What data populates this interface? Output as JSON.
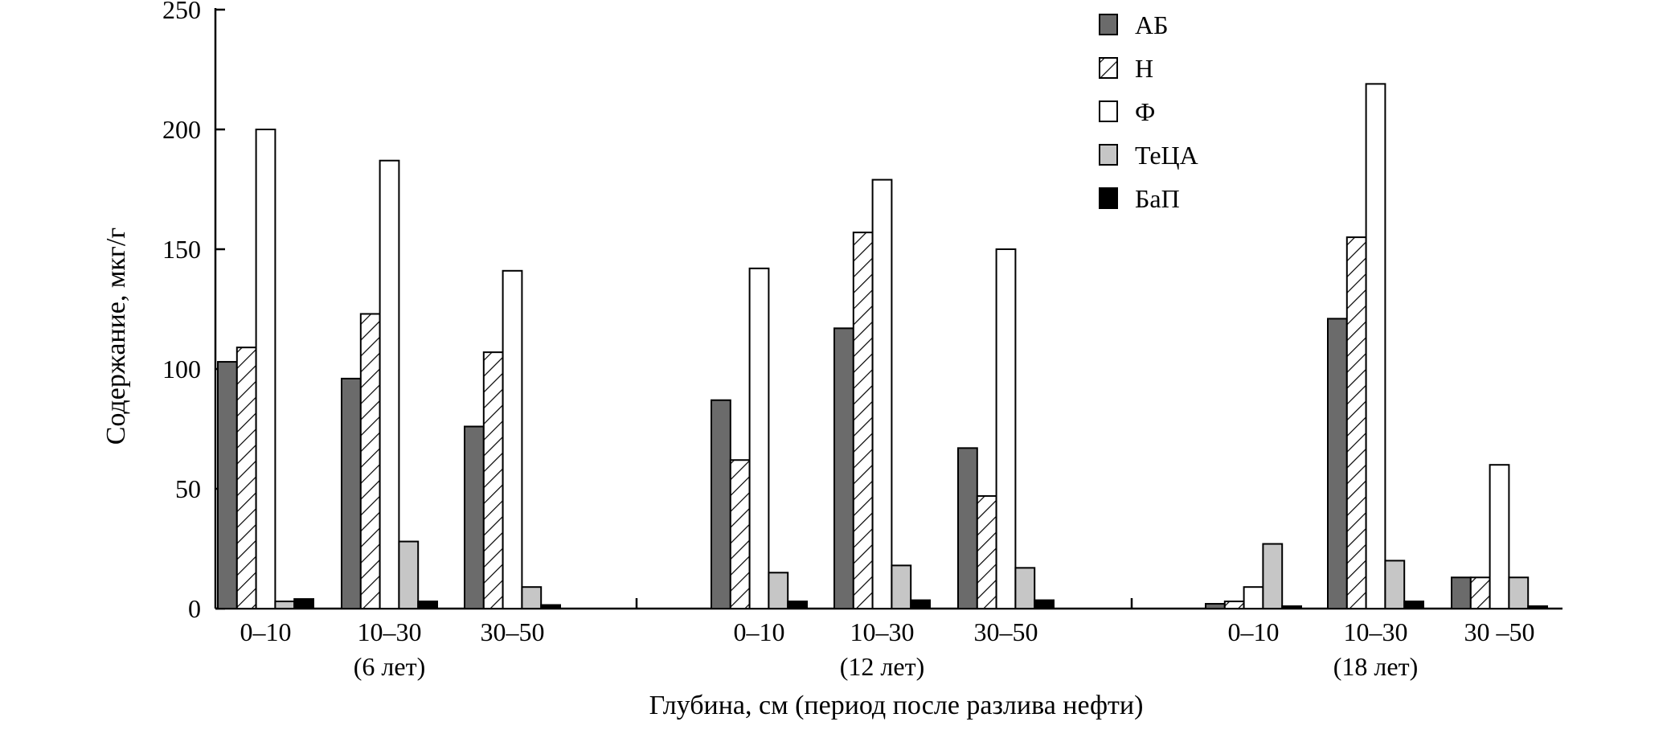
{
  "chart_data": {
    "type": "bar",
    "title": "",
    "xlabel": "Глубина, см (период после разлива нефти)",
    "ylabel": "Содержание, мкг/г",
    "ylim": [
      0,
      250
    ],
    "yticks": [
      0,
      50,
      100,
      150,
      200,
      250
    ],
    "grid": false,
    "legend_position": "top-right",
    "groups": [
      {
        "period": "(6 лет)",
        "categories": [
          "0–10",
          "10–30",
          "30–50"
        ],
        "series": [
          {
            "name": "АБ",
            "values": [
              103,
              96,
              76
            ]
          },
          {
            "name": "Н",
            "values": [
              109,
              123,
              107
            ]
          },
          {
            "name": "Ф",
            "values": [
              200,
              187,
              141
            ]
          },
          {
            "name": "ТеЦА",
            "values": [
              3,
              28,
              9
            ]
          },
          {
            "name": "БаП",
            "values": [
              4,
              3,
              1.5
            ]
          }
        ]
      },
      {
        "period": "(12 лет)",
        "categories": [
          "0–10",
          "10–30",
          "30–50"
        ],
        "series": [
          {
            "name": "АБ",
            "values": [
              87,
              117,
              67
            ]
          },
          {
            "name": "Н",
            "values": [
              62,
              157,
              47
            ]
          },
          {
            "name": "Ф",
            "values": [
              142,
              179,
              150
            ]
          },
          {
            "name": "ТеЦА",
            "values": [
              15,
              18,
              17
            ]
          },
          {
            "name": "БаП",
            "values": [
              3,
              3.5,
              3.5
            ]
          }
        ]
      },
      {
        "period": "(18 лет)",
        "categories": [
          "0–10",
          "10–30",
          "30 –50"
        ],
        "series": [
          {
            "name": "АБ",
            "values": [
              2,
              121,
              13
            ]
          },
          {
            "name": "Н",
            "values": [
              3,
              155,
              13
            ]
          },
          {
            "name": "Ф",
            "values": [
              9,
              219,
              60
            ]
          },
          {
            "name": "ТеЦА",
            "values": [
              27,
              20,
              13
            ]
          },
          {
            "name": "БаП",
            "values": [
              1,
              3,
              1
            ]
          }
        ]
      }
    ],
    "legend": [
      {
        "name": "АБ",
        "style": "solid-dark"
      },
      {
        "name": "Н",
        "style": "hatched"
      },
      {
        "name": "Ф",
        "style": "white"
      },
      {
        "name": "ТеЦА",
        "style": "solid-light"
      },
      {
        "name": "БаП",
        "style": "solid-black"
      }
    ],
    "colors": {
      "АБ": "#6b6b6b",
      "Н": "#ffffff",
      "Ф": "#ffffff",
      "ТеЦА": "#c6c6c6",
      "БаП": "#000000",
      "stroke": "#000000"
    }
  }
}
